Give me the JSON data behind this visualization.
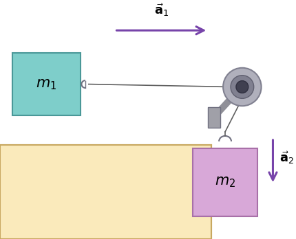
{
  "bg_color": "#ffffff",
  "table_color": "#faeabb",
  "table_edge_color": "#c8a860",
  "block1_color": "#7ececa",
  "block1_edge_color": "#4a9898",
  "block2_color": "#d8a8d8",
  "block2_edge_color": "#a870a8",
  "arrow_color": "#7744aa",
  "pulley_outer_color": "#b0b0bc",
  "pulley_mid_color": "#808090",
  "pulley_hub_color": "#404050",
  "string_color": "#606060",
  "hook_color": "#707080",
  "arm_color": "#909098",
  "m1_label": "$m_1$",
  "m2_label": "$m_2$",
  "a1_label": "$\\vec{\\mathbf{a}}_1$",
  "a2_label": "$\\vec{\\mathbf{a}}_2$"
}
